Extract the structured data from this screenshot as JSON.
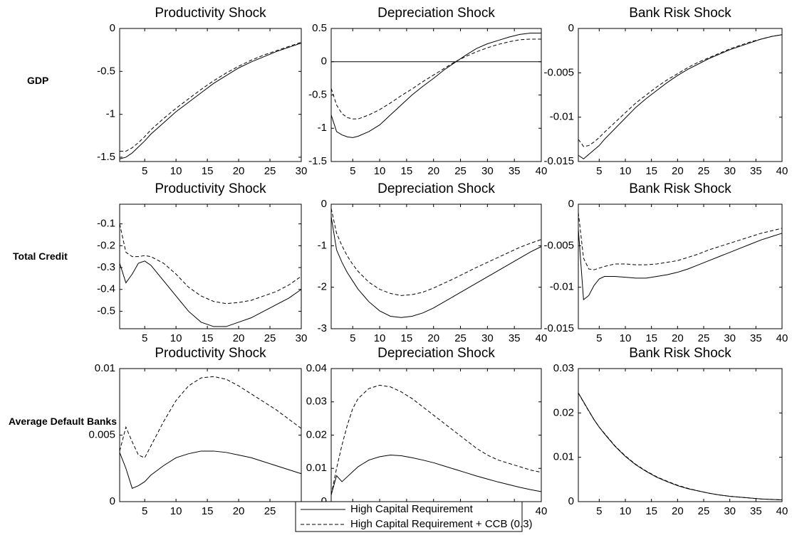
{
  "row_labels": [
    "GDP",
    "Total Credit",
    "Average Default Banks"
  ],
  "chart_data": [
    {
      "type": "line",
      "title": "Productivity Shock",
      "x": [
        1,
        2,
        3,
        4,
        5,
        6,
        8,
        10,
        12,
        14,
        16,
        18,
        20,
        22,
        24,
        26,
        28,
        30
      ],
      "xlim": [
        1,
        30
      ],
      "xticks": [
        5,
        10,
        15,
        20,
        25,
        30
      ],
      "ylim": [
        -1.55,
        0
      ],
      "yticks": [
        0,
        -0.5,
        -1,
        -1.5
      ],
      "series": [
        {
          "color": "#000000",
          "style": "solid",
          "values": [
            -1.52,
            -1.5,
            -1.45,
            -1.38,
            -1.31,
            -1.23,
            -1.1,
            -0.97,
            -0.86,
            -0.75,
            -0.64,
            -0.55,
            -0.46,
            -0.39,
            -0.33,
            -0.27,
            -0.22,
            -0.17
          ]
        },
        {
          "color": "#000000",
          "style": "dashed",
          "values": [
            -1.43,
            -1.43,
            -1.39,
            -1.33,
            -1.26,
            -1.18,
            -1.05,
            -0.93,
            -0.82,
            -0.71,
            -0.61,
            -0.52,
            -0.44,
            -0.37,
            -0.31,
            -0.26,
            -0.21,
            -0.16
          ]
        }
      ]
    },
    {
      "type": "line",
      "title": "Depreciation Shock",
      "x": [
        1,
        2,
        3,
        4,
        5,
        6,
        8,
        10,
        12,
        14,
        16,
        18,
        20,
        22,
        24,
        26,
        28,
        30,
        32,
        34,
        36,
        38,
        40
      ],
      "xlim": [
        1,
        40
      ],
      "xticks": [
        5,
        10,
        15,
        20,
        25,
        30,
        35,
        40
      ],
      "ylim": [
        -1.5,
        0.5
      ],
      "yticks": [
        0.5,
        0,
        -0.5,
        -1,
        -1.5
      ],
      "zero_line": true,
      "series": [
        {
          "color": "#000000",
          "style": "solid",
          "values": [
            -0.8,
            -1.05,
            -1.1,
            -1.13,
            -1.14,
            -1.12,
            -1.05,
            -0.95,
            -0.8,
            -0.65,
            -0.5,
            -0.37,
            -0.25,
            -0.12,
            -0.01,
            0.1,
            0.2,
            0.27,
            0.32,
            0.37,
            0.41,
            0.43,
            0.43
          ]
        },
        {
          "color": "#000000",
          "style": "dashed",
          "values": [
            -0.4,
            -0.65,
            -0.78,
            -0.84,
            -0.86,
            -0.86,
            -0.8,
            -0.72,
            -0.62,
            -0.51,
            -0.41,
            -0.3,
            -0.2,
            -0.1,
            0.0,
            0.08,
            0.15,
            0.21,
            0.26,
            0.3,
            0.33,
            0.34,
            0.34
          ]
        }
      ]
    },
    {
      "type": "line",
      "title": "Bank Risk Shock",
      "x": [
        1,
        2,
        3,
        4,
        5,
        6,
        8,
        10,
        12,
        14,
        16,
        18,
        20,
        22,
        24,
        26,
        28,
        30,
        32,
        34,
        36,
        38,
        40
      ],
      "xlim": [
        1,
        40
      ],
      "xticks": [
        5,
        10,
        15,
        20,
        25,
        30,
        35,
        40
      ],
      "ylim": [
        -0.015,
        0
      ],
      "yticks": [
        0,
        -0.005,
        -0.01,
        -0.015
      ],
      "series": [
        {
          "color": "#000000",
          "style": "solid",
          "values": [
            -0.0143,
            -0.0147,
            -0.0142,
            -0.0137,
            -0.0132,
            -0.0125,
            -0.0113,
            -0.0101,
            -0.0089,
            -0.0079,
            -0.007,
            -0.0061,
            -0.0053,
            -0.0046,
            -0.004,
            -0.0034,
            -0.0029,
            -0.0024,
            -0.002,
            -0.0016,
            -0.0012,
            -0.0009,
            -0.0007
          ]
        },
        {
          "color": "#000000",
          "style": "dashed",
          "values": [
            -0.0125,
            -0.0133,
            -0.0132,
            -0.0128,
            -0.0123,
            -0.0117,
            -0.0106,
            -0.0095,
            -0.0084,
            -0.0075,
            -0.0066,
            -0.0058,
            -0.0051,
            -0.0044,
            -0.0038,
            -0.0033,
            -0.0028,
            -0.0023,
            -0.0019,
            -0.0015,
            -0.0012,
            -0.0009,
            -0.0007
          ]
        }
      ]
    },
    {
      "type": "line",
      "title": "Productivity Shock",
      "x": [
        1,
        2,
        3,
        4,
        5,
        6,
        8,
        10,
        12,
        14,
        16,
        18,
        20,
        22,
        24,
        26,
        28,
        30
      ],
      "xlim": [
        1,
        30
      ],
      "xticks": [
        5,
        10,
        15,
        20,
        25,
        30
      ],
      "ylim": [
        -0.58,
        -0.01
      ],
      "yticks": [
        -0.1,
        -0.2,
        -0.3,
        -0.4,
        -0.5
      ],
      "series": [
        {
          "color": "#000000",
          "style": "solid",
          "values": [
            -0.28,
            -0.37,
            -0.33,
            -0.28,
            -0.27,
            -0.29,
            -0.36,
            -0.43,
            -0.5,
            -0.55,
            -0.57,
            -0.57,
            -0.55,
            -0.53,
            -0.5,
            -0.47,
            -0.44,
            -0.4
          ]
        },
        {
          "color": "#000000",
          "style": "dashed",
          "values": [
            -0.1,
            -0.23,
            -0.25,
            -0.25,
            -0.245,
            -0.25,
            -0.28,
            -0.33,
            -0.39,
            -0.43,
            -0.455,
            -0.465,
            -0.46,
            -0.45,
            -0.43,
            -0.41,
            -0.38,
            -0.34
          ]
        }
      ]
    },
    {
      "type": "line",
      "title": "Depreciation Shock",
      "x": [
        1,
        2,
        3,
        4,
        5,
        6,
        8,
        10,
        12,
        14,
        16,
        18,
        20,
        22,
        24,
        26,
        28,
        30,
        32,
        34,
        36,
        38,
        40
      ],
      "xlim": [
        1,
        40
      ],
      "xticks": [
        5,
        10,
        15,
        20,
        25,
        30,
        35,
        40
      ],
      "ylim": [
        -3,
        0
      ],
      "yticks": [
        0,
        -1,
        -2,
        -3
      ],
      "series": [
        {
          "color": "#000000",
          "style": "solid",
          "values": [
            -0.3,
            -1.1,
            -1.4,
            -1.65,
            -1.85,
            -2.05,
            -2.35,
            -2.57,
            -2.7,
            -2.73,
            -2.7,
            -2.62,
            -2.5,
            -2.35,
            -2.2,
            -2.05,
            -1.9,
            -1.75,
            -1.6,
            -1.45,
            -1.3,
            -1.15,
            -1.02
          ]
        },
        {
          "color": "#000000",
          "style": "dashed",
          "values": [
            -0.1,
            -0.7,
            -1.0,
            -1.25,
            -1.45,
            -1.62,
            -1.88,
            -2.05,
            -2.15,
            -2.2,
            -2.18,
            -2.12,
            -2.02,
            -1.9,
            -1.78,
            -1.65,
            -1.52,
            -1.4,
            -1.28,
            -1.16,
            -1.04,
            -0.94,
            -0.85
          ]
        }
      ]
    },
    {
      "type": "line",
      "title": "Bank Risk Shock",
      "x": [
        1,
        2,
        3,
        4,
        5,
        6,
        8,
        10,
        12,
        14,
        16,
        18,
        20,
        22,
        24,
        26,
        28,
        30,
        32,
        34,
        36,
        38,
        40
      ],
      "xlim": [
        1,
        40
      ],
      "xticks": [
        5,
        10,
        15,
        20,
        25,
        30,
        35,
        40
      ],
      "ylim": [
        -0.015,
        0
      ],
      "yticks": [
        0,
        -0.005,
        -0.01,
        -0.015
      ],
      "series": [
        {
          "color": "#000000",
          "style": "solid",
          "values": [
            -0.003,
            -0.0115,
            -0.011,
            -0.0098,
            -0.009,
            -0.0087,
            -0.0087,
            -0.0088,
            -0.0089,
            -0.0089,
            -0.0087,
            -0.0085,
            -0.0082,
            -0.0078,
            -0.0073,
            -0.0068,
            -0.0063,
            -0.0058,
            -0.0053,
            -0.0048,
            -0.0043,
            -0.0039,
            -0.0035
          ]
        },
        {
          "color": "#000000",
          "style": "dashed",
          "values": [
            -0.001,
            -0.0065,
            -0.0078,
            -0.0079,
            -0.0077,
            -0.0075,
            -0.0072,
            -0.0072,
            -0.0073,
            -0.0073,
            -0.0072,
            -0.007,
            -0.0068,
            -0.0064,
            -0.006,
            -0.0055,
            -0.0051,
            -0.0047,
            -0.0043,
            -0.0039,
            -0.0035,
            -0.0032,
            -0.0029
          ]
        }
      ]
    },
    {
      "type": "line",
      "title": "Productivity Shock",
      "x": [
        1,
        2,
        3,
        4,
        5,
        6,
        8,
        10,
        12,
        14,
        16,
        18,
        20,
        22,
        24,
        26,
        28,
        30
      ],
      "xlim": [
        1,
        30
      ],
      "xticks": [
        5,
        10,
        15,
        20,
        25,
        30
      ],
      "ylim": [
        0,
        0.01
      ],
      "yticks": [
        0,
        0.005,
        0.01
      ],
      "series": [
        {
          "color": "#000000",
          "style": "solid",
          "values": [
            0.0037,
            0.0025,
            0.001,
            0.0012,
            0.0015,
            0.002,
            0.0027,
            0.0033,
            0.0036,
            0.0038,
            0.0038,
            0.0037,
            0.0035,
            0.0033,
            0.003,
            0.0027,
            0.0024,
            0.0021
          ]
        },
        {
          "color": "#000000",
          "style": "dashed",
          "values": [
            0.0038,
            0.0056,
            0.0045,
            0.0035,
            0.0033,
            0.0042,
            0.006,
            0.0076,
            0.0087,
            0.0093,
            0.0094,
            0.0092,
            0.0087,
            0.0081,
            0.0075,
            0.0069,
            0.0062,
            0.0055
          ]
        }
      ]
    },
    {
      "type": "line",
      "title": "Depreciation Shock",
      "x": [
        1,
        2,
        3,
        4,
        5,
        6,
        8,
        10,
        12,
        14,
        16,
        18,
        20,
        22,
        24,
        26,
        28,
        30,
        32,
        34,
        36,
        38,
        40
      ],
      "xlim": [
        1,
        40
      ],
      "xticks": [
        5,
        10,
        15,
        20,
        25,
        30,
        35,
        40
      ],
      "ylim": [
        0,
        0.04
      ],
      "yticks": [
        0,
        0.01,
        0.02,
        0.03,
        0.04
      ],
      "series": [
        {
          "name": "High Capital Requirement",
          "color": "#000000",
          "style": "solid",
          "values": [
            0.002,
            0.0078,
            0.006,
            0.0075,
            0.009,
            0.0105,
            0.0125,
            0.0135,
            0.014,
            0.0138,
            0.0132,
            0.0125,
            0.0117,
            0.0107,
            0.0097,
            0.0087,
            0.0077,
            0.0068,
            0.0059,
            0.0051,
            0.0043,
            0.0036,
            0.003
          ]
        },
        {
          "name": "High Capital Requirement + CCB (0.3)",
          "color": "#000000",
          "style": "dashed",
          "values": [
            0.002,
            0.01,
            0.017,
            0.023,
            0.028,
            0.031,
            0.034,
            0.035,
            0.0345,
            0.033,
            0.031,
            0.0285,
            0.026,
            0.0235,
            0.021,
            0.0185,
            0.016,
            0.014,
            0.0125,
            0.0115,
            0.0105,
            0.0095,
            0.0088
          ]
        }
      ]
    },
    {
      "type": "line",
      "title": "Bank Risk Shock",
      "x": [
        1,
        2,
        3,
        4,
        5,
        6,
        8,
        10,
        12,
        14,
        16,
        18,
        20,
        22,
        24,
        26,
        28,
        30,
        32,
        34,
        36,
        38,
        40
      ],
      "xlim": [
        1,
        40
      ],
      "xticks": [
        5,
        10,
        15,
        20,
        25,
        30,
        35,
        40
      ],
      "ylim": [
        0,
        0.03
      ],
      "yticks": [
        0,
        0.01,
        0.02,
        0.03
      ],
      "series": [
        {
          "color": "#000000",
          "style": "solid",
          "values": [
            0.0245,
            0.0225,
            0.0205,
            0.0185,
            0.0168,
            0.0153,
            0.0125,
            0.0102,
            0.0083,
            0.0068,
            0.0055,
            0.0045,
            0.0036,
            0.0029,
            0.0024,
            0.0019,
            0.0015,
            0.0012,
            0.001,
            0.0008,
            0.0006,
            0.0005,
            0.0004
          ]
        },
        {
          "color": "#000000",
          "style": "dashed",
          "values": [
            0.0245,
            0.0224,
            0.0204,
            0.0185,
            0.0168,
            0.0154,
            0.0126,
            0.0103,
            0.0084,
            0.0069,
            0.0056,
            0.0046,
            0.0037,
            0.003,
            0.0024,
            0.0019,
            0.0015,
            0.0012,
            0.001,
            0.0008,
            0.0006,
            0.0005,
            0.0004
          ]
        }
      ]
    }
  ]
}
